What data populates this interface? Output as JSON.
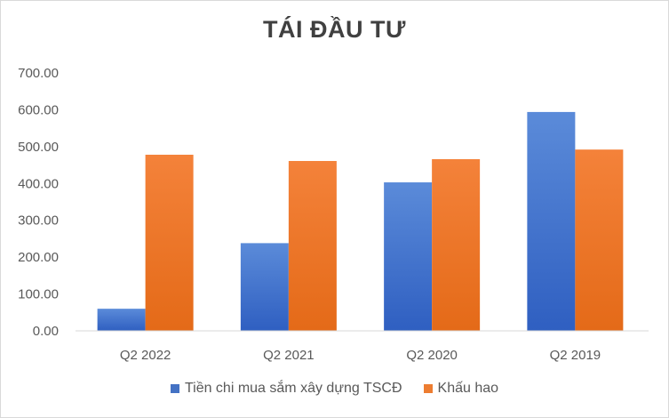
{
  "chart_data": {
    "type": "bar",
    "title": "TÁI ĐẦU TƯ",
    "categories": [
      "Q2 2022",
      "Q2 2021",
      "Q2 2020",
      "Q2 2019"
    ],
    "series": [
      {
        "name": "Tiền chi mua sắm xây dựng TSCĐ",
        "values": [
          60,
          238,
          403,
          594
        ],
        "color": "#4472c4"
      },
      {
        "name": "Khấu hao",
        "values": [
          478,
          461,
          466,
          492
        ],
        "color": "#ed7d31"
      }
    ],
    "ylim": [
      0,
      700
    ],
    "yticks": [
      "0.00",
      "100.00",
      "200.00",
      "300.00",
      "400.00",
      "500.00",
      "600.00",
      "700.00"
    ],
    "grid": false,
    "legend_position": "bottom"
  }
}
